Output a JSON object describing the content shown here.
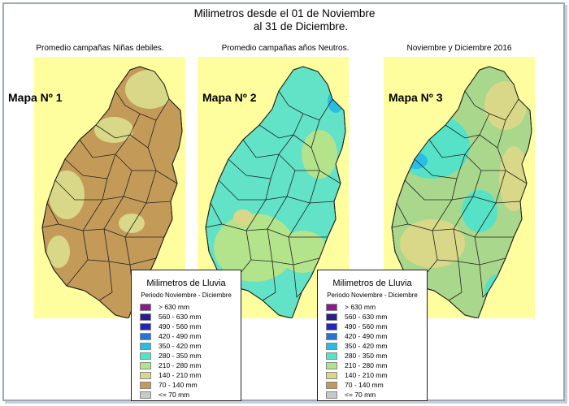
{
  "title": {
    "line1": "Milimetros  desde el 01 de Noviembre",
    "line2": "al 31 de Diciembre."
  },
  "maps": [
    {
      "subtitle": "Promedio campañas Niñas debiles.",
      "label": "Mapa Nº 1",
      "base_color": "#c49a59"
    },
    {
      "subtitle": "Promedio campañas años Neutros.",
      "label": "Mapa Nº 2",
      "base_color": "#62e2c6"
    },
    {
      "subtitle": "Noviembre y Diciembre 2016",
      "label": "Mapa Nº 3",
      "base_color": "#a9d88c"
    }
  ],
  "legend": {
    "title": "Milimetros de Lluvia",
    "subtitle": "Periodo Noviembre - Diciembre",
    "items": [
      {
        "label": "> 630 mm",
        "color": "#8d1a8d"
      },
      {
        "label": "560 - 630 mm",
        "color": "#2b1d8c"
      },
      {
        "label": "490 - 560 mm",
        "color": "#2227b8"
      },
      {
        "label": "420 - 490 mm",
        "color": "#2473d6"
      },
      {
        "label": "350 - 420 mm",
        "color": "#28bde6"
      },
      {
        "label": "280 - 350 mm",
        "color": "#55e2c6"
      },
      {
        "label": "210 - 280 mm",
        "color": "#b3e38a"
      },
      {
        "label": "140 - 210 mm",
        "color": "#d8d888"
      },
      {
        "label": "70 - 140 mm",
        "color": "#c49a59"
      },
      {
        "label": "<= 70 mm",
        "color": "#c8c8c8"
      }
    ]
  }
}
